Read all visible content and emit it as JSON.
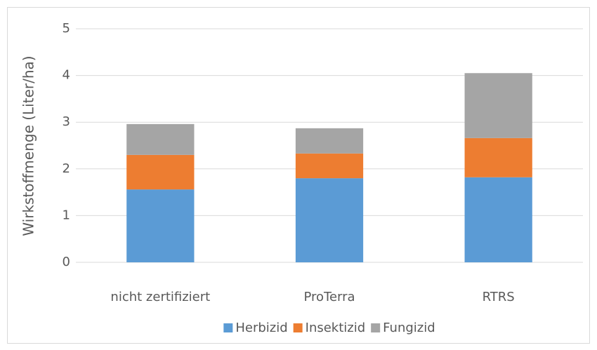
{
  "chart_data": {
    "type": "stacked_bar",
    "y_label": "Wirkstoffmenge (Liter/ha)",
    "categories": [
      "nicht zertifiziert",
      "ProTerra",
      "RTRS"
    ],
    "series": [
      {
        "name": "Herbizid",
        "color": "#5b9bd5",
        "values": [
          1.56,
          1.8,
          1.82
        ]
      },
      {
        "name": "Insektizid",
        "color": "#ed7d31",
        "values": [
          0.74,
          0.53,
          0.84
        ]
      },
      {
        "name": "Fungizid",
        "color": "#a5a5a5",
        "values": [
          0.66,
          0.54,
          1.39
        ]
      }
    ],
    "ylim": [
      0,
      5
    ],
    "yticks": [
      0,
      1,
      2,
      3,
      4,
      5
    ],
    "grid": true,
    "legend": "bottom"
  }
}
